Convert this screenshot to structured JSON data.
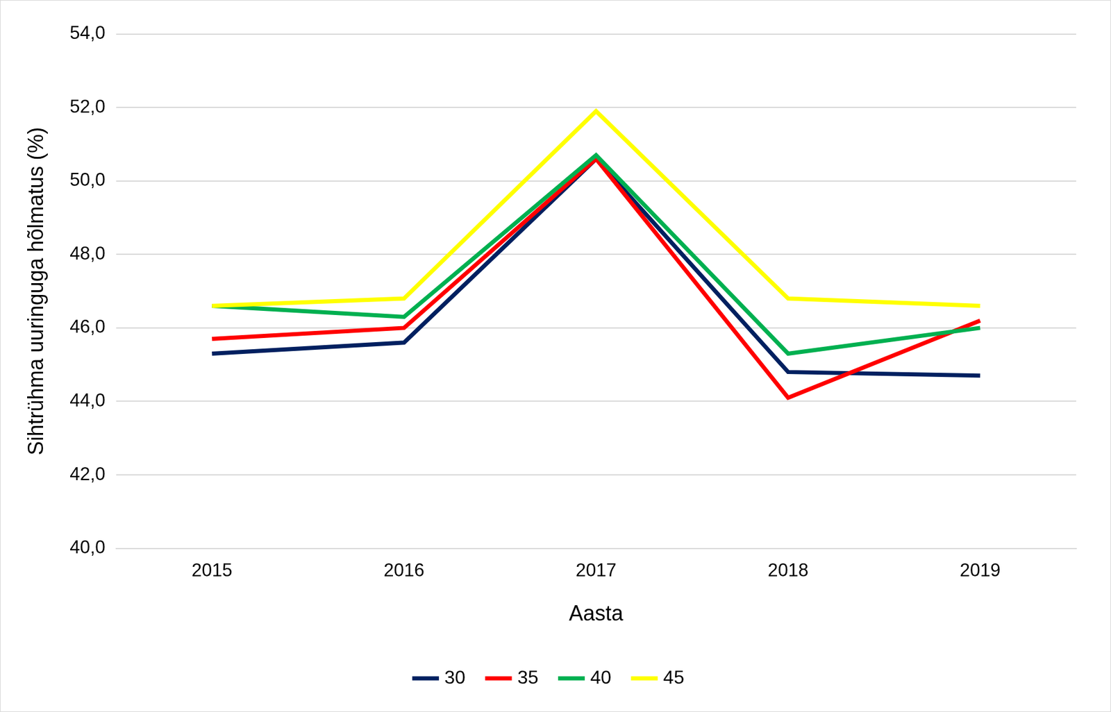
{
  "chart_data": {
    "type": "line",
    "x_label": "Aasta",
    "y_label": "Sihtrühma uuringuga hõlmatus (%)",
    "categories": [
      "2015",
      "2016",
      "2017",
      "2018",
      "2019"
    ],
    "series": [
      {
        "name": "30",
        "color": "#002060",
        "values": [
          45.3,
          45.6,
          50.6,
          44.8,
          44.7
        ]
      },
      {
        "name": "35",
        "color": "#ff0000",
        "values": [
          45.7,
          46.0,
          50.6,
          44.1,
          46.2
        ]
      },
      {
        "name": "40",
        "color": "#00b050",
        "values": [
          46.6,
          46.3,
          50.7,
          45.3,
          46.0
        ]
      },
      {
        "name": "45",
        "color": "#ffff00",
        "values": [
          46.6,
          46.8,
          51.9,
          46.8,
          46.6
        ]
      }
    ],
    "ylim": [
      40,
      54
    ],
    "yticks": [
      {
        "value": 40,
        "label": "40,0"
      },
      {
        "value": 42,
        "label": "42,0"
      },
      {
        "value": 44,
        "label": "44,0"
      },
      {
        "value": 46,
        "label": "46,0"
      },
      {
        "value": 48,
        "label": "48,0"
      },
      {
        "value": 50,
        "label": "50,0"
      },
      {
        "value": 52,
        "label": "52,0"
      },
      {
        "value": 54,
        "label": "54,0"
      }
    ],
    "grid": true,
    "legend": "bottom"
  }
}
